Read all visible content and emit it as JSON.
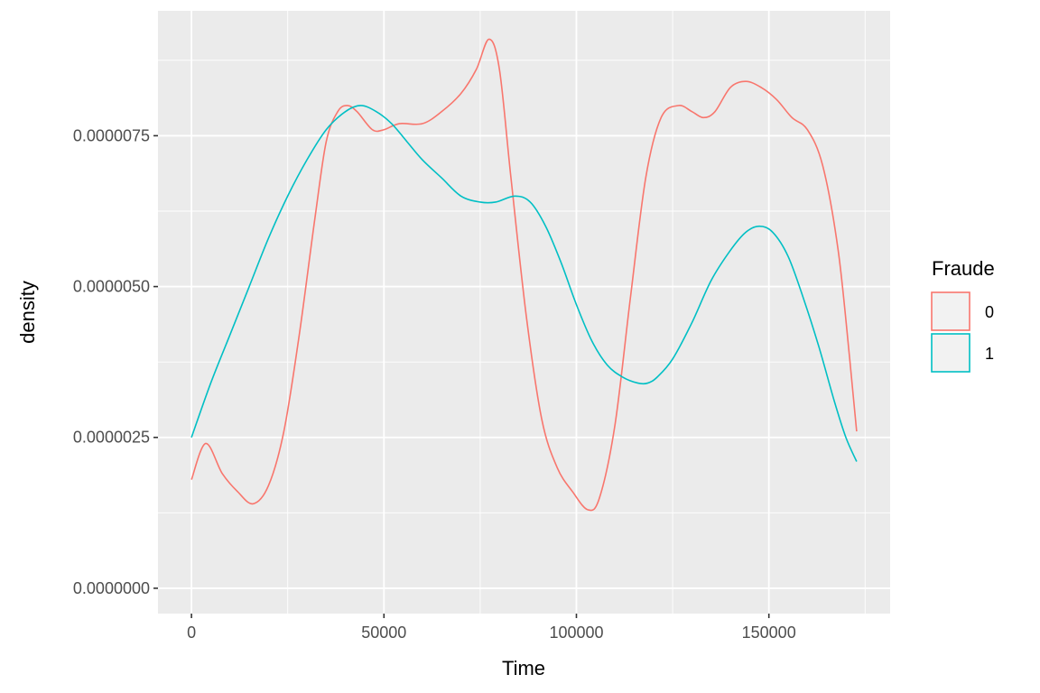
{
  "chart_data": {
    "type": "line",
    "title": "",
    "xlabel": "Time",
    "ylabel": "density",
    "xlim": [
      -8700,
      181500
    ],
    "ylim": [
      -4.2e-07,
      9.57e-06
    ],
    "x_ticks": [
      0,
      50000,
      100000,
      150000
    ],
    "x_tick_labels": [
      "0",
      "50000",
      "100000",
      "150000"
    ],
    "y_ticks": [
      0,
      2.5e-06,
      5e-06,
      7.5e-06
    ],
    "y_tick_labels": [
      "0.0000000",
      "0.0000025",
      "0.0000050",
      "0.0000075"
    ],
    "grid": true,
    "legend": {
      "title": "Fraude",
      "position": "right"
    },
    "series": [
      {
        "name": "0",
        "color": "#F8766D",
        "points": [
          [
            0,
            1.8e-06
          ],
          [
            3700,
            2.4e-06
          ],
          [
            8000,
            1.9e-06
          ],
          [
            12000,
            1.6e-06
          ],
          [
            16000,
            1.4e-06
          ],
          [
            20000,
            1.7e-06
          ],
          [
            24000,
            2.6e-06
          ],
          [
            28000,
            4.2e-06
          ],
          [
            32000,
            6.1e-06
          ],
          [
            35000,
            7.4e-06
          ],
          [
            38000,
            7.9e-06
          ],
          [
            40500,
            8e-06
          ],
          [
            43000,
            7.9e-06
          ],
          [
            47000,
            7.6e-06
          ],
          [
            50000,
            7.6e-06
          ],
          [
            54000,
            7.7e-06
          ],
          [
            60000,
            7.7e-06
          ],
          [
            65000,
            7.9e-06
          ],
          [
            70000,
            8.2e-06
          ],
          [
            74000,
            8.6e-06
          ],
          [
            77300,
            9.1e-06
          ],
          [
            80000,
            8.6e-06
          ],
          [
            83000,
            6.8e-06
          ],
          [
            87000,
            4.5e-06
          ],
          [
            91000,
            2.8e-06
          ],
          [
            95000,
            2e-06
          ],
          [
            99000,
            1.6e-06
          ],
          [
            103000,
            1.3e-06
          ],
          [
            106000,
            1.5e-06
          ],
          [
            110000,
            2.7e-06
          ],
          [
            114000,
            4.8e-06
          ],
          [
            118000,
            6.8e-06
          ],
          [
            122000,
            7.8e-06
          ],
          [
            126500,
            8e-06
          ],
          [
            130000,
            7.9e-06
          ],
          [
            133000,
            7.8e-06
          ],
          [
            136000,
            7.9e-06
          ],
          [
            140000,
            8.3e-06
          ],
          [
            144000,
            8.4e-06
          ],
          [
            148000,
            8.3e-06
          ],
          [
            152000,
            8.1e-06
          ],
          [
            156000,
            7.8e-06
          ],
          [
            160000,
            7.6e-06
          ],
          [
            164000,
            7e-06
          ],
          [
            168000,
            5.6e-06
          ],
          [
            171000,
            3.8e-06
          ],
          [
            172800,
            2.6e-06
          ]
        ]
      },
      {
        "name": "1",
        "color": "#00BFC4",
        "points": [
          [
            0,
            2.5e-06
          ],
          [
            5000,
            3.4e-06
          ],
          [
            10000,
            4.2e-06
          ],
          [
            15000,
            5e-06
          ],
          [
            20000,
            5.8e-06
          ],
          [
            25000,
            6.5e-06
          ],
          [
            30000,
            7.1e-06
          ],
          [
            35000,
            7.6e-06
          ],
          [
            40000,
            7.9e-06
          ],
          [
            44000,
            8e-06
          ],
          [
            48000,
            7.9e-06
          ],
          [
            52000,
            7.7e-06
          ],
          [
            56000,
            7.4e-06
          ],
          [
            60000,
            7.1e-06
          ],
          [
            65000,
            6.8e-06
          ],
          [
            70000,
            6.5e-06
          ],
          [
            75000,
            6.4e-06
          ],
          [
            79000,
            6.4e-06
          ],
          [
            84000,
            6.5e-06
          ],
          [
            88000,
            6.4e-06
          ],
          [
            92000,
            6e-06
          ],
          [
            96000,
            5.4e-06
          ],
          [
            100000,
            4.7e-06
          ],
          [
            104000,
            4.1e-06
          ],
          [
            108000,
            3.7e-06
          ],
          [
            112000,
            3.5e-06
          ],
          [
            116000,
            3.4e-06
          ],
          [
            118500,
            3.4e-06
          ],
          [
            121000,
            3.5e-06
          ],
          [
            125000,
            3.8e-06
          ],
          [
            130000,
            4.4e-06
          ],
          [
            135000,
            5.1e-06
          ],
          [
            140000,
            5.6e-06
          ],
          [
            144000,
            5.9e-06
          ],
          [
            147500,
            6e-06
          ],
          [
            151000,
            5.9e-06
          ],
          [
            155000,
            5.5e-06
          ],
          [
            159000,
            4.8e-06
          ],
          [
            163000,
            4e-06
          ],
          [
            167000,
            3.1e-06
          ],
          [
            170000,
            2.5e-06
          ],
          [
            172800,
            2.1e-06
          ]
        ]
      }
    ]
  }
}
